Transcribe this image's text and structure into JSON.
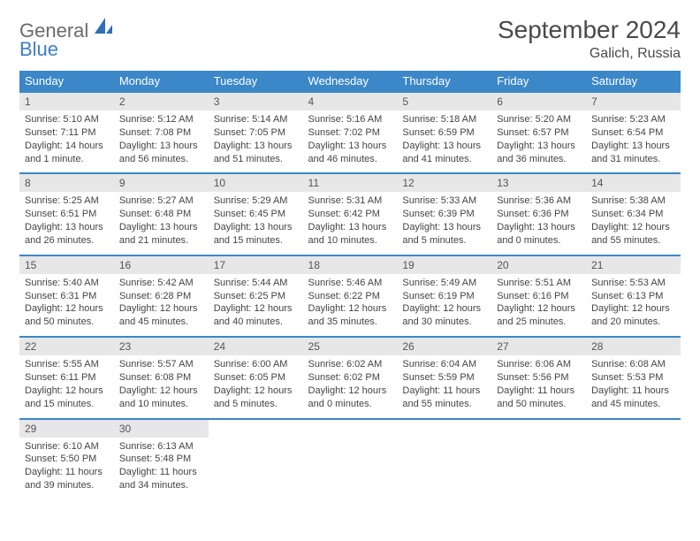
{
  "brand": {
    "word1": "General",
    "word2": "Blue"
  },
  "title": "September 2024",
  "location": "Galich, Russia",
  "colors": {
    "header_bg": "#3b87c8",
    "header_text": "#ffffff",
    "daynum_bg": "#e7e7e7",
    "border": "#3b87c8",
    "body_text": "#444444",
    "logo_gray": "#6b6b6b",
    "logo_blue": "#3b7fc4"
  },
  "day_names": [
    "Sunday",
    "Monday",
    "Tuesday",
    "Wednesday",
    "Thursday",
    "Friday",
    "Saturday"
  ],
  "weeks": [
    [
      {
        "n": "1",
        "sr": "Sunrise: 5:10 AM",
        "ss": "Sunset: 7:11 PM",
        "dl": "Daylight: 14 hours and 1 minute."
      },
      {
        "n": "2",
        "sr": "Sunrise: 5:12 AM",
        "ss": "Sunset: 7:08 PM",
        "dl": "Daylight: 13 hours and 56 minutes."
      },
      {
        "n": "3",
        "sr": "Sunrise: 5:14 AM",
        "ss": "Sunset: 7:05 PM",
        "dl": "Daylight: 13 hours and 51 minutes."
      },
      {
        "n": "4",
        "sr": "Sunrise: 5:16 AM",
        "ss": "Sunset: 7:02 PM",
        "dl": "Daylight: 13 hours and 46 minutes."
      },
      {
        "n": "5",
        "sr": "Sunrise: 5:18 AM",
        "ss": "Sunset: 6:59 PM",
        "dl": "Daylight: 13 hours and 41 minutes."
      },
      {
        "n": "6",
        "sr": "Sunrise: 5:20 AM",
        "ss": "Sunset: 6:57 PM",
        "dl": "Daylight: 13 hours and 36 minutes."
      },
      {
        "n": "7",
        "sr": "Sunrise: 5:23 AM",
        "ss": "Sunset: 6:54 PM",
        "dl": "Daylight: 13 hours and 31 minutes."
      }
    ],
    [
      {
        "n": "8",
        "sr": "Sunrise: 5:25 AM",
        "ss": "Sunset: 6:51 PM",
        "dl": "Daylight: 13 hours and 26 minutes."
      },
      {
        "n": "9",
        "sr": "Sunrise: 5:27 AM",
        "ss": "Sunset: 6:48 PM",
        "dl": "Daylight: 13 hours and 21 minutes."
      },
      {
        "n": "10",
        "sr": "Sunrise: 5:29 AM",
        "ss": "Sunset: 6:45 PM",
        "dl": "Daylight: 13 hours and 15 minutes."
      },
      {
        "n": "11",
        "sr": "Sunrise: 5:31 AM",
        "ss": "Sunset: 6:42 PM",
        "dl": "Daylight: 13 hours and 10 minutes."
      },
      {
        "n": "12",
        "sr": "Sunrise: 5:33 AM",
        "ss": "Sunset: 6:39 PM",
        "dl": "Daylight: 13 hours and 5 minutes."
      },
      {
        "n": "13",
        "sr": "Sunrise: 5:36 AM",
        "ss": "Sunset: 6:36 PM",
        "dl": "Daylight: 13 hours and 0 minutes."
      },
      {
        "n": "14",
        "sr": "Sunrise: 5:38 AM",
        "ss": "Sunset: 6:34 PM",
        "dl": "Daylight: 12 hours and 55 minutes."
      }
    ],
    [
      {
        "n": "15",
        "sr": "Sunrise: 5:40 AM",
        "ss": "Sunset: 6:31 PM",
        "dl": "Daylight: 12 hours and 50 minutes."
      },
      {
        "n": "16",
        "sr": "Sunrise: 5:42 AM",
        "ss": "Sunset: 6:28 PM",
        "dl": "Daylight: 12 hours and 45 minutes."
      },
      {
        "n": "17",
        "sr": "Sunrise: 5:44 AM",
        "ss": "Sunset: 6:25 PM",
        "dl": "Daylight: 12 hours and 40 minutes."
      },
      {
        "n": "18",
        "sr": "Sunrise: 5:46 AM",
        "ss": "Sunset: 6:22 PM",
        "dl": "Daylight: 12 hours and 35 minutes."
      },
      {
        "n": "19",
        "sr": "Sunrise: 5:49 AM",
        "ss": "Sunset: 6:19 PM",
        "dl": "Daylight: 12 hours and 30 minutes."
      },
      {
        "n": "20",
        "sr": "Sunrise: 5:51 AM",
        "ss": "Sunset: 6:16 PM",
        "dl": "Daylight: 12 hours and 25 minutes."
      },
      {
        "n": "21",
        "sr": "Sunrise: 5:53 AM",
        "ss": "Sunset: 6:13 PM",
        "dl": "Daylight: 12 hours and 20 minutes."
      }
    ],
    [
      {
        "n": "22",
        "sr": "Sunrise: 5:55 AM",
        "ss": "Sunset: 6:11 PM",
        "dl": "Daylight: 12 hours and 15 minutes."
      },
      {
        "n": "23",
        "sr": "Sunrise: 5:57 AM",
        "ss": "Sunset: 6:08 PM",
        "dl": "Daylight: 12 hours and 10 minutes."
      },
      {
        "n": "24",
        "sr": "Sunrise: 6:00 AM",
        "ss": "Sunset: 6:05 PM",
        "dl": "Daylight: 12 hours and 5 minutes."
      },
      {
        "n": "25",
        "sr": "Sunrise: 6:02 AM",
        "ss": "Sunset: 6:02 PM",
        "dl": "Daylight: 12 hours and 0 minutes."
      },
      {
        "n": "26",
        "sr": "Sunrise: 6:04 AM",
        "ss": "Sunset: 5:59 PM",
        "dl": "Daylight: 11 hours and 55 minutes."
      },
      {
        "n": "27",
        "sr": "Sunrise: 6:06 AM",
        "ss": "Sunset: 5:56 PM",
        "dl": "Daylight: 11 hours and 50 minutes."
      },
      {
        "n": "28",
        "sr": "Sunrise: 6:08 AM",
        "ss": "Sunset: 5:53 PM",
        "dl": "Daylight: 11 hours and 45 minutes."
      }
    ],
    [
      {
        "n": "29",
        "sr": "Sunrise: 6:10 AM",
        "ss": "Sunset: 5:50 PM",
        "dl": "Daylight: 11 hours and 39 minutes."
      },
      {
        "n": "30",
        "sr": "Sunrise: 6:13 AM",
        "ss": "Sunset: 5:48 PM",
        "dl": "Daylight: 11 hours and 34 minutes."
      },
      {
        "empty": true
      },
      {
        "empty": true
      },
      {
        "empty": true
      },
      {
        "empty": true
      },
      {
        "empty": true
      }
    ]
  ]
}
